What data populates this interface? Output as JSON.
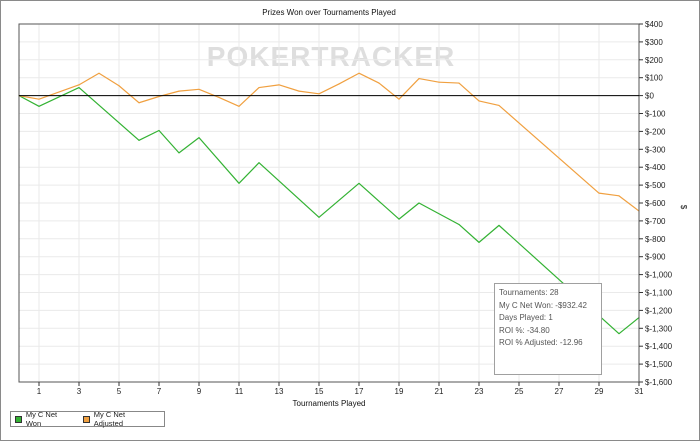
{
  "chart_data": {
    "type": "line",
    "title": "Prizes Won over Tournaments Played",
    "xlabel": "Tournaments Played",
    "ylabel": "$",
    "xlim": [
      0,
      31
    ],
    "ylim": [
      -1600,
      400
    ],
    "x_ticks": [
      1,
      3,
      5,
      7,
      9,
      11,
      13,
      15,
      17,
      19,
      21,
      23,
      25,
      27,
      29,
      31
    ],
    "y_ticks": [
      400,
      300,
      200,
      100,
      0,
      -100,
      -200,
      -300,
      -400,
      -500,
      -600,
      -700,
      -800,
      -900,
      -1000,
      -1100,
      -1200,
      -1300,
      -1400,
      -1500,
      -1600
    ],
    "y_tick_labels": [
      "$400",
      "$300",
      "$200",
      "$100",
      "$0",
      "$-100",
      "$-200",
      "$-300",
      "$-400",
      "$-500",
      "$-600",
      "$-700",
      "$-800",
      "$-900",
      "$-1,000",
      "$-1,100",
      "$-1,200",
      "$-1,300",
      "$-1,400",
      "$-1,500",
      "$-1,600"
    ],
    "grid": true,
    "legend_position": "bottom-left",
    "watermark": "POKERTRACKER",
    "series": [
      {
        "name": "My C Net Won",
        "color": "#33b233",
        "x": [
          0,
          1,
          3,
          6,
          7,
          8,
          9,
          11,
          12,
          15,
          17,
          19,
          20,
          22,
          23,
          24,
          30,
          31
        ],
        "values": [
          0,
          -60,
          45,
          -250,
          -195,
          -320,
          -235,
          -490,
          -375,
          -680,
          -490,
          -690,
          -600,
          -720,
          -820,
          -725,
          -1330,
          -1240
        ]
      },
      {
        "name": "My C Net Adjusted",
        "color": "#f0a040",
        "x": [
          0,
          1,
          3,
          4,
          5,
          6,
          7,
          8,
          9,
          10,
          11,
          12,
          13,
          14,
          15,
          16,
          17,
          18,
          19,
          20,
          21,
          22,
          23,
          24,
          29,
          30,
          31
        ],
        "values": [
          0,
          -20,
          60,
          125,
          55,
          -40,
          -5,
          25,
          35,
          -10,
          -60,
          45,
          60,
          25,
          10,
          65,
          125,
          70,
          -20,
          95,
          75,
          70,
          -30,
          -55,
          -545,
          -560,
          -645
        ]
      }
    ],
    "stats": [
      "Tournaments: 28",
      "My C Net Won: -$932.42",
      "Days Played: 1",
      "ROI %: -34.80",
      "ROI % Adjusted: -12.96"
    ]
  }
}
